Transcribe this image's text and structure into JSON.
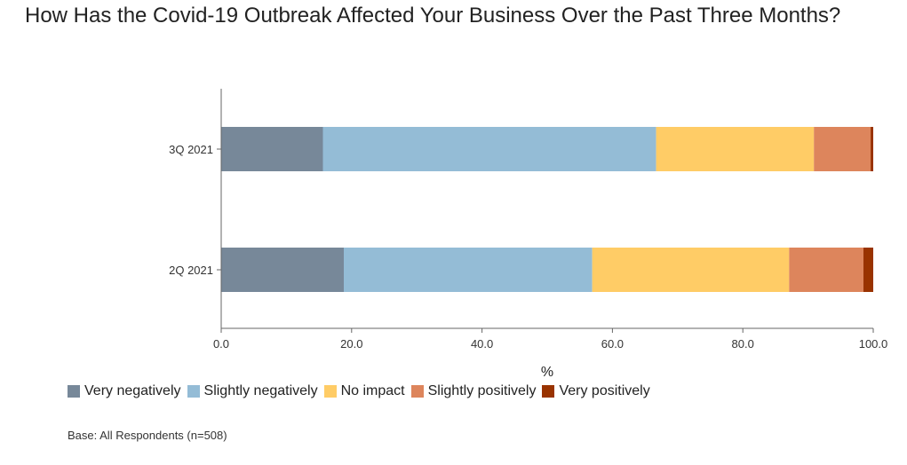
{
  "title": "How Has the Covid-19 Outbreak Affected Your Business Over the Past Three Months?",
  "footnote": "Base: All Respondents (n=508)",
  "chart_data": {
    "type": "bar",
    "orientation": "horizontal",
    "stacked": true,
    "categories": [
      "3Q 2021",
      "2Q 2021"
    ],
    "series": [
      {
        "name": "Very negatively",
        "color": "#778899",
        "values": [
          15.6,
          18.8
        ]
      },
      {
        "name": "Slightly negatively",
        "color": "#94bcd6",
        "values": [
          51.1,
          38.1
        ]
      },
      {
        "name": "No impact",
        "color": "#ffcc66",
        "values": [
          24.2,
          30.2
        ]
      },
      {
        "name": "Slightly positively",
        "color": "#dd855c",
        "values": [
          8.7,
          11.4
        ]
      },
      {
        "name": "Very positively",
        "color": "#993300",
        "values": [
          0.4,
          1.5
        ]
      }
    ],
    "xlabel": "%",
    "xlim": [
      0,
      100
    ],
    "xticks": [
      "0.0",
      "20.0",
      "40.0",
      "60.0",
      "80.0",
      "100.0"
    ],
    "grid": false,
    "legend_position": "bottom-left"
  }
}
